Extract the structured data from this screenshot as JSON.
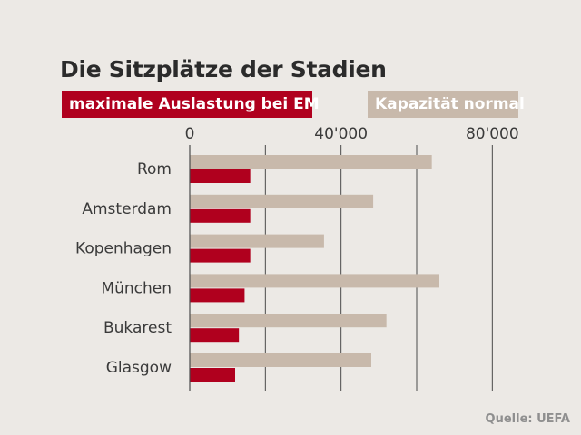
{
  "title": "Die Sitzplätze der Stadien",
  "legend": {
    "max_label": "maximale Auslastung bei EM",
    "cap_label": "Kapazität normal"
  },
  "source": "Quelle: UEFA",
  "colors": {
    "max": "#b0001e",
    "cap": "#c8b9ab",
    "axis": "#4a4a4a",
    "grid": "#4a4a4a",
    "text": "#3a3a3a"
  },
  "chart_data": {
    "type": "bar",
    "orientation": "horizontal",
    "categories": [
      "Rom",
      "Amsterdam",
      "Kopenhagen",
      "München",
      "Bukarest",
      "Glasgow"
    ],
    "series": [
      {
        "name": "Kapazität normal",
        "values": [
          64000,
          48500,
          35500,
          66000,
          52000,
          48000
        ]
      },
      {
        "name": "maximale Auslastung bei EM",
        "values": [
          16000,
          16000,
          16000,
          14500,
          13000,
          12000
        ]
      }
    ],
    "xlim": [
      0,
      160000
    ],
    "xticks": [
      0,
      40000,
      80000
    ],
    "xtick_labels": [
      "0",
      "40'000",
      "80'000"
    ],
    "grid": true,
    "legend_position": "top"
  }
}
